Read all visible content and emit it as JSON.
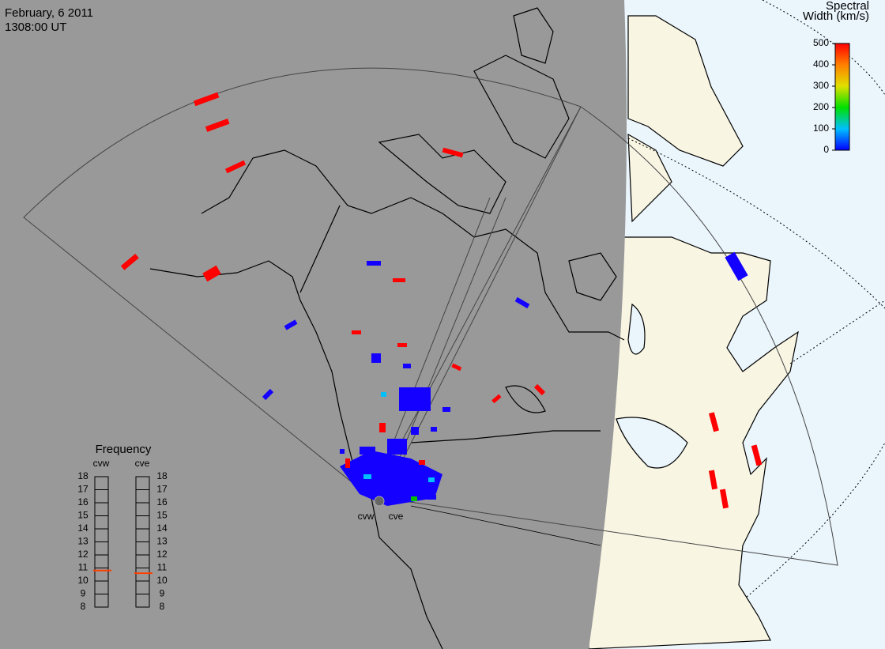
{
  "header": {
    "date": "February, 6 2011",
    "time": "1308:00 UT"
  },
  "colorbar": {
    "title": [
      "Spectral",
      "Width (km/s)"
    ],
    "lim": [
      0,
      500
    ],
    "ticks": [
      0,
      100,
      200,
      300,
      400,
      500
    ]
  },
  "frequency": {
    "title": "Frequency",
    "lim": [
      8,
      18
    ],
    "ticks": [
      8,
      9,
      10,
      11,
      12,
      13,
      14,
      15,
      16,
      17,
      18
    ],
    "radars": [
      {
        "name": "cvw",
        "value": 10.8
      },
      {
        "name": "cve",
        "value": 10.6
      }
    ]
  },
  "stations": [
    "cvw",
    "cve"
  ]
}
